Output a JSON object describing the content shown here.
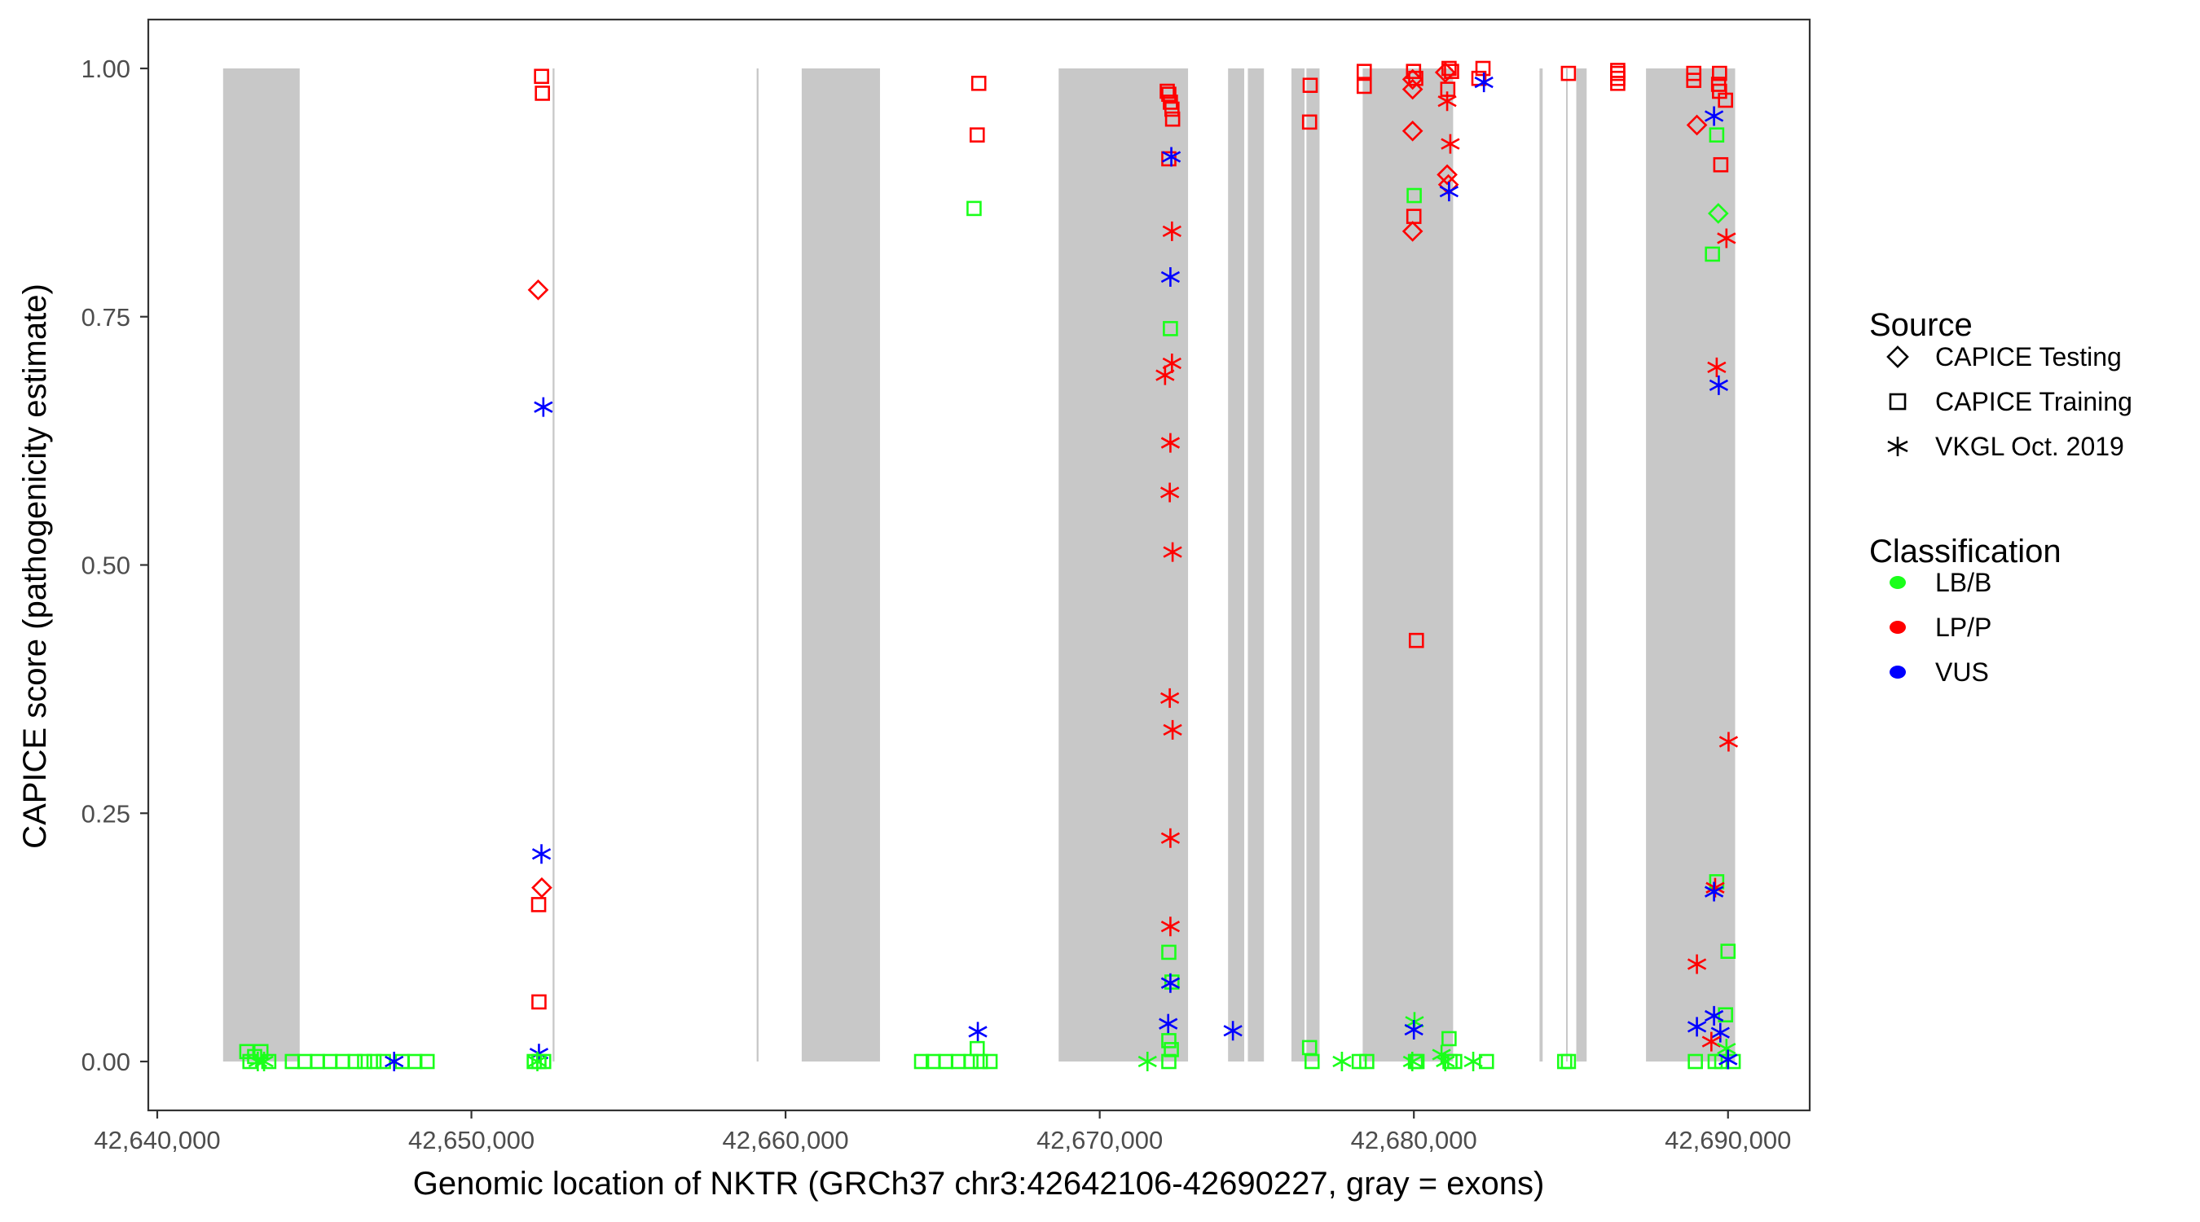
{
  "chart_data": {
    "type": "scatter",
    "title": "",
    "xlabel": "Genomic location of NKTR (GRCh37 chr3:42642106-42690227, gray = exons)",
    "ylabel": "CAPICE score (pathogenicity estimate)",
    "xlim": [
      42639300,
      42692000
    ],
    "ylim": [
      -0.045,
      1.05
    ],
    "x_ticks": [
      42640000,
      42650000,
      42660000,
      42670000,
      42680000,
      42690000
    ],
    "x_tick_labels": [
      "42,640,000",
      "42,650,000",
      "42,660,000",
      "42,670,000",
      "42,680,000",
      "42,690,000"
    ],
    "y_ticks": [
      0,
      0.25,
      0.5,
      0.75,
      1.0
    ],
    "y_tick_labels": [
      "0.00",
      "0.25",
      "0.50",
      "0.75",
      "1.00"
    ],
    "grid": false,
    "legend_placement": "right",
    "exons": [
      [
        42642096,
        42644534
      ],
      [
        42652585,
        42652645
      ],
      [
        42659080,
        42659140
      ],
      [
        42660514,
        42663006
      ],
      [
        42668693,
        42672812
      ],
      [
        42674086,
        42674600
      ],
      [
        42674716,
        42675227
      ],
      [
        42676103,
        42676520
      ],
      [
        42676580,
        42676998
      ],
      [
        42678371,
        42681250
      ],
      [
        42684000,
        42684100
      ],
      [
        42684845,
        42684895
      ],
      [
        42685170,
        42685500
      ],
      [
        42687390,
        42690227
      ]
    ],
    "legend": {
      "source_title": "Source",
      "sources": [
        {
          "label": "CAPICE Testing",
          "shape": "diamond"
        },
        {
          "label": "CAPICE Training",
          "shape": "square"
        },
        {
          "label": "VKGL Oct. 2019",
          "shape": "asterisk"
        }
      ],
      "class_title": "Classification",
      "classes": [
        {
          "label": "LB/B",
          "color": "#1aff1a"
        },
        {
          "label": "LP/P",
          "color": "#ff0000"
        },
        {
          "label": "VUS",
          "color": "#0000ff"
        }
      ]
    },
    "point_fields": [
      "position",
      "score",
      "source_index",
      "class_index"
    ],
    "points": [
      [
        42642850,
        0.01,
        1,
        0
      ],
      [
        42642950,
        0.0,
        1,
        0
      ],
      [
        42643100,
        0.005,
        1,
        0
      ],
      [
        42643300,
        0.01,
        1,
        0
      ],
      [
        42643200,
        0.0,
        2,
        0
      ],
      [
        42643400,
        0.0,
        2,
        0
      ],
      [
        42643550,
        0.0,
        1,
        0
      ],
      [
        42644300,
        0.0,
        1,
        0
      ],
      [
        42644700,
        0.0,
        1,
        0
      ],
      [
        42645100,
        0.0,
        1,
        0
      ],
      [
        42645500,
        0.0,
        1,
        0
      ],
      [
        42645900,
        0.0,
        1,
        0
      ],
      [
        42646300,
        0.0,
        1,
        0
      ],
      [
        42646600,
        0.0,
        1,
        0
      ],
      [
        42646900,
        0.0,
        1,
        0
      ],
      [
        42647200,
        0.0,
        1,
        0
      ],
      [
        42647800,
        0.0,
        1,
        0
      ],
      [
        42648200,
        0.0,
        1,
        0
      ],
      [
        42648590,
        0.0,
        1,
        0
      ],
      [
        42647540,
        0.0,
        2,
        2
      ],
      [
        42652233,
        0.992,
        1,
        1
      ],
      [
        42652260,
        0.975,
        1,
        1
      ],
      [
        42652125,
        0.777,
        0,
        1
      ],
      [
        42652290,
        0.659,
        2,
        2
      ],
      [
        42652230,
        0.209,
        2,
        2
      ],
      [
        42652240,
        0.175,
        0,
        1
      ],
      [
        42652140,
        0.158,
        1,
        1
      ],
      [
        42652150,
        0.06,
        1,
        1
      ],
      [
        42652150,
        0.008,
        2,
        2
      ],
      [
        42652000,
        0.0,
        1,
        0
      ],
      [
        42652150,
        0.0,
        1,
        0
      ],
      [
        42652300,
        0.0,
        1,
        0
      ],
      [
        42652100,
        0.0,
        2,
        0
      ],
      [
        42666150,
        0.985,
        1,
        1
      ],
      [
        42666100,
        0.933,
        1,
        1
      ],
      [
        42666000,
        0.859,
        1,
        0
      ],
      [
        42666120,
        0.03,
        2,
        2
      ],
      [
        42666100,
        0.013,
        1,
        0
      ],
      [
        42664330,
        0.0,
        1,
        0
      ],
      [
        42664700,
        0.0,
        1,
        0
      ],
      [
        42665100,
        0.0,
        1,
        0
      ],
      [
        42665500,
        0.0,
        1,
        0
      ],
      [
        42665900,
        0.0,
        1,
        0
      ],
      [
        42666200,
        0.0,
        1,
        0
      ],
      [
        42666510,
        0.0,
        1,
        0
      ],
      [
        42672150,
        0.977,
        1,
        1
      ],
      [
        42672200,
        0.974,
        1,
        1
      ],
      [
        42672250,
        0.966,
        1,
        1
      ],
      [
        42672300,
        0.959,
        1,
        1
      ],
      [
        42672320,
        0.949,
        1,
        1
      ],
      [
        42672200,
        0.909,
        1,
        1
      ],
      [
        42672280,
        0.911,
        2,
        2
      ],
      [
        42672300,
        0.836,
        2,
        1
      ],
      [
        42672250,
        0.79,
        2,
        2
      ],
      [
        42672250,
        0.738,
        1,
        0
      ],
      [
        42672300,
        0.703,
        2,
        1
      ],
      [
        42672080,
        0.691,
        2,
        1
      ],
      [
        42672250,
        0.623,
        2,
        1
      ],
      [
        42672230,
        0.573,
        2,
        1
      ],
      [
        42672320,
        0.513,
        2,
        1
      ],
      [
        42672230,
        0.366,
        2,
        1
      ],
      [
        42672320,
        0.334,
        2,
        1
      ],
      [
        42672250,
        0.225,
        2,
        1
      ],
      [
        42672250,
        0.136,
        2,
        1
      ],
      [
        42672200,
        0.11,
        1,
        0
      ],
      [
        42672300,
        0.08,
        1,
        0
      ],
      [
        42672250,
        0.079,
        2,
        2
      ],
      [
        42672180,
        0.038,
        2,
        2
      ],
      [
        42672200,
        0.021,
        1,
        0
      ],
      [
        42672280,
        0.012,
        1,
        0
      ],
      [
        42672200,
        0.0,
        1,
        0
      ],
      [
        42671520,
        0.0,
        2,
        0
      ],
      [
        42674240,
        0.031,
        2,
        2
      ],
      [
        42676700,
        0.983,
        1,
        1
      ],
      [
        42676680,
        0.946,
        1,
        1
      ],
      [
        42676680,
        0.014,
        1,
        0
      ],
      [
        42676760,
        0.0,
        1,
        0
      ],
      [
        42677710,
        0.0,
        2,
        0
      ],
      [
        42678260,
        0.0,
        1,
        0
      ],
      [
        42678500,
        0.0,
        1,
        0
      ],
      [
        42678420,
        0.997,
        1,
        1
      ],
      [
        42678420,
        0.982,
        1,
        1
      ],
      [
        42679990,
        0.997,
        1,
        1
      ],
      [
        42680060,
        0.99,
        1,
        1
      ],
      [
        42679960,
        0.989,
        0,
        1
      ],
      [
        42679960,
        0.979,
        0,
        1
      ],
      [
        42679960,
        0.937,
        0,
        1
      ],
      [
        42680010,
        0.872,
        1,
        0
      ],
      [
        42680000,
        0.851,
        1,
        1
      ],
      [
        42679960,
        0.836,
        0,
        1
      ],
      [
        42680080,
        0.424,
        1,
        1
      ],
      [
        42680020,
        0.04,
        2,
        0
      ],
      [
        42680000,
        0.032,
        2,
        2
      ],
      [
        42679950,
        0.0,
        2,
        0
      ],
      [
        42680050,
        0.0,
        1,
        0
      ],
      [
        42680100,
        0.0,
        1,
        0
      ],
      [
        42681120,
        1.0,
        1,
        1
      ],
      [
        42681200,
        0.997,
        1,
        1
      ],
      [
        42681000,
        0.996,
        0,
        1
      ],
      [
        42681080,
        0.979,
        1,
        1
      ],
      [
        42681060,
        0.967,
        2,
        1
      ],
      [
        42681160,
        0.924,
        2,
        1
      ],
      [
        42681060,
        0.893,
        0,
        1
      ],
      [
        42681100,
        0.883,
        0,
        1
      ],
      [
        42681120,
        0.876,
        2,
        2
      ],
      [
        42681120,
        0.023,
        1,
        0
      ],
      [
        42680880,
        0.007,
        2,
        0
      ],
      [
        42681000,
        0.0,
        2,
        0
      ],
      [
        42681150,
        0.0,
        1,
        0
      ],
      [
        42681300,
        0.0,
        1,
        0
      ],
      [
        42681890,
        0.0,
        2,
        0
      ],
      [
        42682310,
        0.0,
        1,
        0
      ],
      [
        42682200,
        1.0,
        1,
        1
      ],
      [
        42682070,
        0.99,
        1,
        1
      ],
      [
        42682230,
        0.986,
        2,
        2
      ],
      [
        42684920,
        0.995,
        1,
        1
      ],
      [
        42684800,
        0.0,
        1,
        0
      ],
      [
        42684920,
        0.0,
        1,
        0
      ],
      [
        42686490,
        0.998,
        1,
        1
      ],
      [
        42686490,
        0.995,
        1,
        1
      ],
      [
        42686490,
        0.99,
        1,
        1
      ],
      [
        42686490,
        0.985,
        1,
        1
      ],
      [
        42688910,
        0.995,
        1,
        1
      ],
      [
        42688910,
        0.988,
        1,
        1
      ],
      [
        42689730,
        0.995,
        1,
        1
      ],
      [
        42689700,
        0.984,
        1,
        1
      ],
      [
        42689730,
        0.977,
        1,
        1
      ],
      [
        42689555,
        0.952,
        2,
        2
      ],
      [
        42689920,
        0.968,
        1,
        1
      ],
      [
        42689010,
        0.943,
        0,
        1
      ],
      [
        42689640,
        0.933,
        1,
        0
      ],
      [
        42689770,
        0.903,
        1,
        1
      ],
      [
        42689690,
        0.854,
        0,
        0
      ],
      [
        42689950,
        0.829,
        2,
        1
      ],
      [
        42689505,
        0.813,
        1,
        0
      ],
      [
        42689640,
        0.699,
        2,
        1
      ],
      [
        42689705,
        0.681,
        2,
        2
      ],
      [
        42690017,
        0.322,
        2,
        1
      ],
      [
        42689640,
        0.181,
        1,
        0
      ],
      [
        42689590,
        0.175,
        2,
        1
      ],
      [
        42689555,
        0.171,
        2,
        2
      ],
      [
        42690000,
        0.111,
        1,
        0
      ],
      [
        42689010,
        0.098,
        2,
        1
      ],
      [
        42689920,
        0.047,
        1,
        0
      ],
      [
        42689555,
        0.046,
        2,
        2
      ],
      [
        42689010,
        0.035,
        2,
        2
      ],
      [
        42689755,
        0.029,
        2,
        2
      ],
      [
        42689470,
        0.02,
        2,
        1
      ],
      [
        42689950,
        0.013,
        2,
        0
      ],
      [
        42688960,
        0.0,
        1,
        0
      ],
      [
        42689590,
        0.0,
        1,
        0
      ],
      [
        42689800,
        0.0,
        1,
        0
      ],
      [
        42690165,
        0.0,
        1,
        0
      ],
      [
        42690000,
        0.002,
        2,
        2
      ]
    ]
  }
}
